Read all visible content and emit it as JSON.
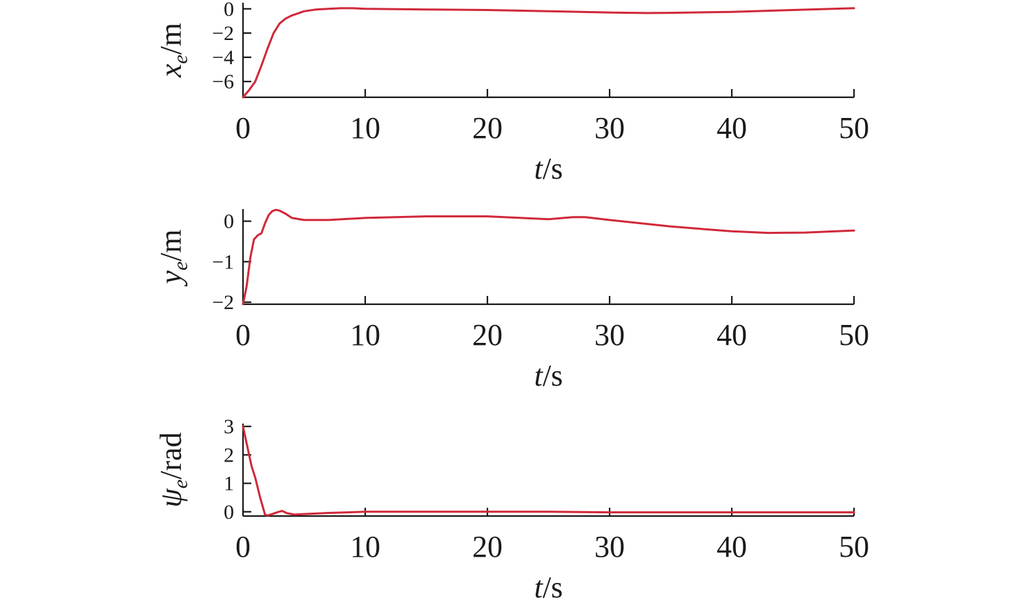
{
  "chart_data": [
    {
      "type": "line",
      "xlabel": {
        "main": "t",
        "suffix": "/s"
      },
      "ylabel": {
        "main": "x",
        "sub": "e",
        "suffix": "/m"
      },
      "xlim": [
        0,
        50
      ],
      "ylim": [
        -7.3,
        0.5
      ],
      "xticks": [
        0,
        10,
        20,
        30,
        40,
        50
      ],
      "yticks": [
        0,
        -2,
        -4,
        -6
      ],
      "ytick_labels": [
        "0",
        "−2",
        "−4",
        "−6"
      ],
      "grid": false,
      "series": [
        {
          "color": "#d0293a",
          "x": [
            0,
            0.5,
            1,
            1.5,
            2,
            2.5,
            3,
            3.5,
            4,
            5,
            6,
            7,
            8,
            9,
            10,
            15,
            20,
            25,
            30,
            33,
            35,
            40,
            45,
            50
          ],
          "y": [
            -7.3,
            -6.7,
            -6.0,
            -4.7,
            -3.3,
            -2.0,
            -1.2,
            -0.8,
            -0.55,
            -0.2,
            -0.05,
            0.0,
            0.05,
            0.05,
            0.0,
            -0.05,
            -0.1,
            -0.2,
            -0.3,
            -0.35,
            -0.33,
            -0.25,
            -0.1,
            0.05
          ]
        }
      ]
    },
    {
      "type": "line",
      "xlabel": {
        "main": "t",
        "suffix": "/s"
      },
      "ylabel": {
        "main": "y",
        "sub": "e",
        "suffix": "/m"
      },
      "xlim": [
        0,
        50
      ],
      "ylim": [
        -2.05,
        0.3
      ],
      "xticks": [
        0,
        10,
        20,
        30,
        40,
        50
      ],
      "yticks": [
        0,
        -1,
        -2
      ],
      "ytick_labels": [
        "0",
        "−1",
        "−2"
      ],
      "grid": false,
      "series": [
        {
          "color": "#d0293a",
          "x": [
            0,
            0.3,
            0.6,
            0.9,
            1.2,
            1.5,
            1.8,
            2.1,
            2.4,
            2.7,
            3.0,
            3.5,
            4,
            5,
            7,
            10,
            15,
            20,
            25,
            27,
            28,
            30,
            35,
            40,
            43,
            46,
            50
          ],
          "y": [
            -2.05,
            -1.6,
            -0.9,
            -0.45,
            -0.35,
            -0.3,
            -0.05,
            0.15,
            0.25,
            0.28,
            0.26,
            0.18,
            0.08,
            0.03,
            0.03,
            0.08,
            0.12,
            0.12,
            0.05,
            0.1,
            0.1,
            0.03,
            -0.13,
            -0.25,
            -0.29,
            -0.28,
            -0.23
          ]
        }
      ]
    },
    {
      "type": "line",
      "xlabel": {
        "main": "t",
        "suffix": "/s"
      },
      "ylabel": {
        "main": "ψ",
        "sub": "e",
        "suffix": "/rad"
      },
      "xlim": [
        0,
        50
      ],
      "ylim": [
        -0.15,
        3.1
      ],
      "xticks": [
        0,
        10,
        20,
        30,
        40,
        50
      ],
      "yticks": [
        3,
        2,
        1,
        0
      ],
      "ytick_labels": [
        "3",
        "2",
        "1",
        "0"
      ],
      "grid": false,
      "series": [
        {
          "color": "#d0293a",
          "x": [
            0,
            0.3,
            0.7,
            1.0,
            1.4,
            1.8,
            2.0,
            2.4,
            2.8,
            3.2,
            3.6,
            4.2,
            5,
            7,
            10,
            15,
            20,
            25,
            30,
            35,
            40,
            45,
            50
          ],
          "y": [
            3.0,
            2.4,
            1.6,
            1.2,
            0.5,
            -0.1,
            -0.13,
            -0.08,
            -0.02,
            0.03,
            -0.05,
            -0.1,
            -0.08,
            -0.04,
            0.0,
            0.0,
            0.0,
            0.0,
            -0.02,
            -0.02,
            -0.02,
            -0.02,
            -0.02
          ]
        }
      ]
    }
  ]
}
